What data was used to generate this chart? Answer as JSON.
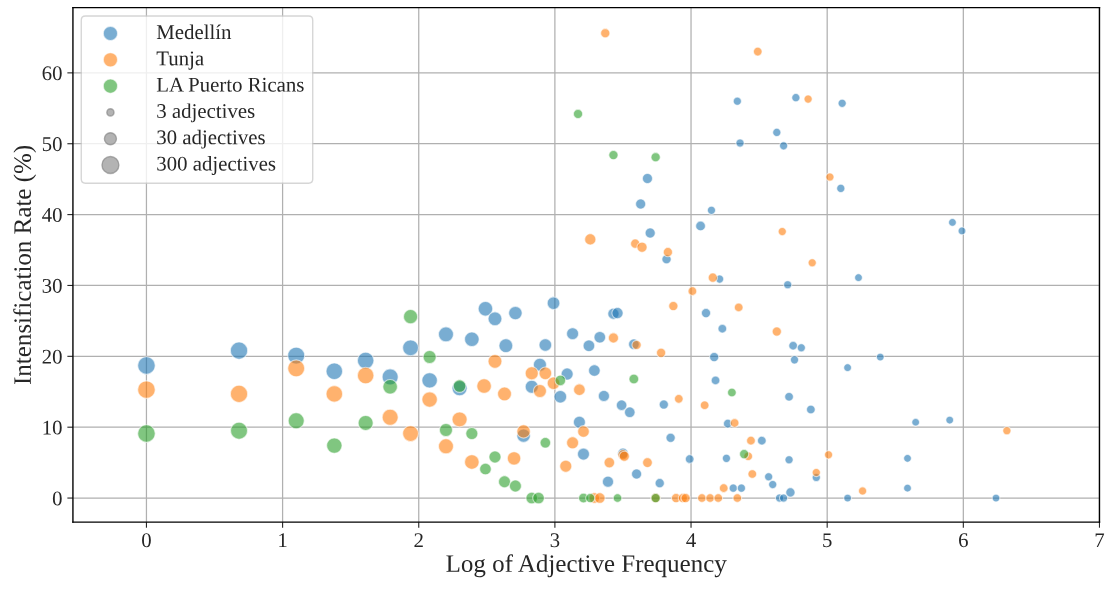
{
  "chart_data": {
    "type": "bubble",
    "xlabel": "Log of Adjective Frequency",
    "ylabel": "Intensification Rate (%)",
    "xlim": [
      -0.54,
      7
    ],
    "xticks": [
      0,
      1,
      2,
      3,
      4,
      5,
      6,
      7
    ],
    "ylim": [
      -3.4,
      69.2
    ],
    "yticks": [
      0,
      10,
      20,
      30,
      40,
      50,
      60
    ],
    "grid": true,
    "legend": "top left",
    "marker": "circle",
    "size_legend": [
      {
        "value": 27,
        "label": "3 adjectives"
      },
      {
        "value": 75,
        "label": "30 adjectives"
      },
      {
        "value": 149,
        "label": "300 adjectives"
      }
    ],
    "series": [
      {
        "name": "Medellín",
        "color": "#1f77b4",
        "x": [
          0,
          0.68,
          1.1,
          1.38,
          1.61,
          1.79,
          1.94,
          2.08,
          2.2,
          2.3,
          2.39,
          2.49,
          2.56,
          2.64,
          2.71,
          2.77,
          2.83,
          2.89,
          2.93,
          2.99,
          3.04,
          3.09,
          3.13,
          3.18,
          3.21,
          3.25,
          3.29,
          3.33,
          3.36,
          3.39,
          3.43,
          3.46,
          3.49,
          3.5,
          3.55,
          3.58,
          3.6,
          3.63,
          3.68,
          3.7,
          3.77,
          3.8,
          3.82,
          3.85,
          3.99,
          4.07,
          4.11,
          4.15,
          4.17,
          4.18,
          4.21,
          4.23,
          4.26,
          4.27,
          4.31,
          4.34,
          4.36,
          4.37,
          4.52,
          4.57,
          4.6,
          4.63,
          4.65,
          4.68,
          4.68,
          4.71,
          4.72,
          4.72,
          4.73,
          4.75,
          4.76,
          4.77,
          4.81,
          4.88,
          4.92,
          5.1,
          5.11,
          5.15,
          5.15,
          5.23,
          5.39,
          5.59,
          5.59,
          5.65,
          5.9,
          5.92,
          5.99,
          6.24
        ],
        "values": [
          18.7,
          20.8,
          20.1,
          17.9,
          19.4,
          17.1,
          21.2,
          16.6,
          23.1,
          15.5,
          22.4,
          26.7,
          25.3,
          21.5,
          26.1,
          8.8,
          15.7,
          18.8,
          21.6,
          27.5,
          14.3,
          17.5,
          23.2,
          10.7,
          6.2,
          21.5,
          18.0,
          22.7,
          14.4,
          2.3,
          26.0,
          26.1,
          13.1,
          6.3,
          12.1,
          21.7,
          3.4,
          41.5,
          45.1,
          37.4,
          2.1,
          13.2,
          33.7,
          8.5,
          5.5,
          38.4,
          26.1,
          40.6,
          19.9,
          16.6,
          30.9,
          23.9,
          5.6,
          10.5,
          1.4,
          56.0,
          50.1,
          1.4,
          8.1,
          3.0,
          1.9,
          51.6,
          0,
          0,
          49.7,
          30.1,
          5.4,
          14.3,
          0.8,
          21.5,
          19.5,
          56.5,
          21.2,
          12.5,
          2.9,
          43.7,
          55.7,
          18.4,
          0,
          31.1,
          19.9,
          5.6,
          1.4,
          10.7,
          11.0,
          38.9,
          37.7,
          0
        ],
        "sizes": [
          159,
          154,
          149,
          142,
          142,
          133,
          130,
          123,
          117,
          117,
          110,
          110,
          99,
          99,
          94,
          94,
          89,
          89,
          83,
          83,
          83,
          75,
          75,
          75,
          75,
          70,
          70,
          70,
          65,
          65,
          65,
          65,
          58,
          58,
          58,
          58,
          53,
          53,
          53,
          53,
          44,
          44,
          44,
          44,
          39,
          49,
          44,
          35,
          44,
          39,
          35,
          39,
          35,
          39,
          35,
          35,
          35,
          35,
          39,
          35,
          35,
          35,
          35,
          35,
          35,
          35,
          35,
          39,
          44,
          39,
          35,
          35,
          35,
          39,
          35,
          35,
          35,
          31,
          31,
          31,
          31,
          31,
          31,
          31,
          31,
          31,
          31,
          31
        ]
      },
      {
        "name": "Tunja",
        "color": "#ff7f0e",
        "x": [
          0,
          0.68,
          1.1,
          1.38,
          1.61,
          1.79,
          1.94,
          2.08,
          2.2,
          2.3,
          2.39,
          2.48,
          2.56,
          2.63,
          2.7,
          2.77,
          2.83,
          2.89,
          2.93,
          2.99,
          3.08,
          3.13,
          3.18,
          3.21,
          3.26,
          3.29,
          3.33,
          3.37,
          3.4,
          3.43,
          3.5,
          3.51,
          3.59,
          3.6,
          3.64,
          3.68,
          3.74,
          3.78,
          3.83,
          3.87,
          3.89,
          3.91,
          3.94,
          3.96,
          4.01,
          4.08,
          4.1,
          4.14,
          4.16,
          4.2,
          4.24,
          4.32,
          4.34,
          4.35,
          4.42,
          4.44,
          4.45,
          4.49,
          4.63,
          4.67,
          4.86,
          4.89,
          4.92,
          5.01,
          5.02,
          5.26,
          6.32
        ],
        "values": [
          15.3,
          14.7,
          18.3,
          14.7,
          17.3,
          11.4,
          9.1,
          13.9,
          7.3,
          11.1,
          5.1,
          15.8,
          19.3,
          14.7,
          5.6,
          9.4,
          17.6,
          15.1,
          17.6,
          16.2,
          4.5,
          7.8,
          15.3,
          9.4,
          36.5,
          0,
          0,
          65.6,
          5.0,
          22.6,
          6.1,
          5.9,
          35.9,
          21.6,
          35.4,
          5.0,
          0,
          20.5,
          34.7,
          27.1,
          0,
          14.0,
          0,
          0,
          29.2,
          0,
          13.1,
          0,
          31.1,
          0,
          1.4,
          10.6,
          0,
          26.9,
          5.9,
          8.1,
          3.4,
          63.0,
          23.5,
          37.6,
          56.3,
          33.2,
          3.6,
          6.1,
          45.3,
          1.0,
          9.5
        ],
        "sizes": [
          159,
          154,
          149,
          142,
          142,
          133,
          130,
          123,
          117,
          117,
          110,
          110,
          99,
          99,
          94,
          94,
          89,
          89,
          83,
          83,
          75,
          75,
          70,
          70,
          65,
          58,
          58,
          44,
          58,
          53,
          53,
          53,
          44,
          44,
          53,
          49,
          49,
          44,
          44,
          44,
          44,
          39,
          44,
          44,
          39,
          39,
          39,
          39,
          44,
          39,
          39,
          39,
          39,
          39,
          39,
          39,
          39,
          39,
          44,
          35,
          35,
          35,
          35,
          35,
          35,
          35,
          35
        ]
      },
      {
        "name": "LA Puerto Ricans",
        "color": "#2ca02c",
        "x": [
          0,
          0.68,
          1.1,
          1.38,
          1.61,
          1.79,
          1.94,
          2.08,
          2.2,
          2.3,
          2.39,
          2.49,
          2.56,
          2.63,
          2.71,
          2.83,
          2.88,
          2.93,
          3.04,
          3.17,
          3.21,
          3.26,
          3.43,
          3.46,
          3.58,
          3.74,
          3.74,
          4.3,
          4.39
        ],
        "values": [
          9.1,
          9.5,
          10.9,
          7.4,
          10.6,
          15.7,
          25.6,
          19.9,
          9.6,
          15.8,
          9.1,
          4.1,
          5.8,
          2.3,
          1.7,
          0,
          0,
          7.8,
          16.6,
          54.2,
          0,
          0,
          48.4,
          0,
          16.8,
          48.1,
          0,
          14.9,
          6.2
        ],
        "sizes": [
          159,
          149,
          133,
          123,
          117,
          110,
          104,
          89,
          89,
          83,
          75,
          70,
          75,
          75,
          75,
          70,
          70,
          58,
          58,
          44,
          49,
          44,
          44,
          39,
          49,
          44,
          44,
          39,
          44
        ]
      }
    ]
  }
}
